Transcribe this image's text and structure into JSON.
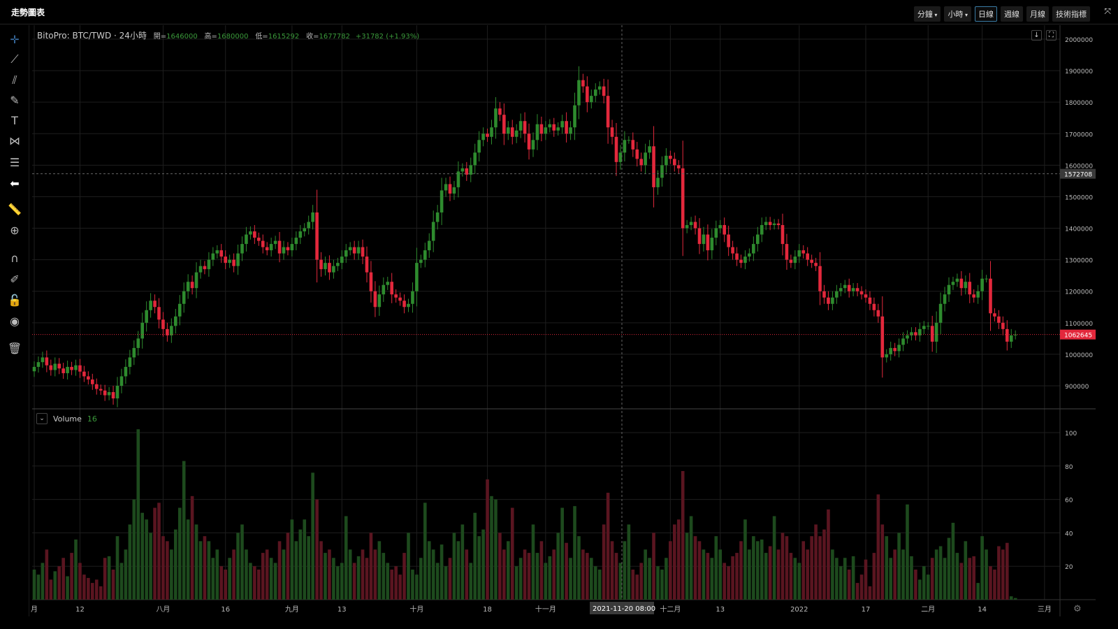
{
  "header": {
    "title": "走勢圖表",
    "timeframes": [
      {
        "label": "分鐘",
        "dropdown": true
      },
      {
        "label": "小時",
        "dropdown": true
      },
      {
        "label": "日線",
        "active": true
      },
      {
        "label": "週線"
      },
      {
        "label": "月線"
      },
      {
        "label": "技術指標"
      }
    ]
  },
  "toolbar": [
    "crosshair-icon",
    "trend-line-icon",
    "multi-line-icon",
    "brush-icon",
    "text-icon",
    "pattern-icon",
    "fib-icon",
    "arrow-left-icon",
    "ruler-icon",
    "zoom-in-icon",
    "magnet-icon",
    "lock-drawing-icon",
    "unlock-icon",
    "eye-icon",
    "trash-icon"
  ],
  "legend": {
    "symbol": "BitoPro: BTC/TWD · 24小時",
    "open_label": "開=",
    "open": "1646000",
    "high_label": "高=",
    "high": "1680000",
    "low_label": "低=",
    "low": "1615292",
    "close_label": "收=",
    "close": "1677782",
    "change": "+31782 (+1.93%)"
  },
  "volume_legend": {
    "label": "Volume",
    "value": "16"
  },
  "crosshair": {
    "time_label": "2021-11-20   08:00",
    "price_label": "1572708",
    "price": 1572708
  },
  "last_price": {
    "label": "1062645",
    "price": 1062645
  },
  "colors": {
    "up": "#2e8b2e",
    "down": "#e3283c",
    "up_vol": "#1d4a1d",
    "down_vol": "#5a1520",
    "grid": "#1e1e1e",
    "last": "#e3283c"
  },
  "chart_data": {
    "type": "candlestick",
    "title": "BitoPro: BTC/TWD",
    "price_axis": {
      "ticks": [
        900000,
        1000000,
        1100000,
        1200000,
        1300000,
        1400000,
        1500000,
        1600000,
        1700000,
        1800000,
        1900000,
        2000000
      ],
      "range": [
        800000,
        2000000
      ]
    },
    "volume_axis": {
      "ticks": [
        20,
        40,
        60,
        80,
        100
      ],
      "range": [
        0,
        110
      ]
    },
    "x_ticks": [
      {
        "label": "月",
        "day": 0
      },
      {
        "label": "12",
        "day": 11
      },
      {
        "label": "八月",
        "day": 31
      },
      {
        "label": "16",
        "day": 46
      },
      {
        "label": "九月",
        "day": 62
      },
      {
        "label": "13",
        "day": 74
      },
      {
        "label": "十月",
        "day": 92
      },
      {
        "label": "18",
        "day": 109
      },
      {
        "label": "十一月",
        "day": 123
      },
      {
        "label": "十二月",
        "day": 153
      },
      {
        "label": "13",
        "day": 165
      },
      {
        "label": "2022",
        "day": 184
      },
      {
        "label": "17",
        "day": 200
      },
      {
        "label": "二月",
        "day": 215
      },
      {
        "label": "14",
        "day": 228
      },
      {
        "label": "三月",
        "day": 243
      }
    ],
    "first_open": 946000,
    "close_thousands": [
      960,
      975,
      990,
      965,
      950,
      970,
      955,
      940,
      960,
      950,
      965,
      945,
      930,
      920,
      905,
      890,
      885,
      870,
      880,
      860,
      900,
      930,
      960,
      990,
      1020,
      1050,
      1100,
      1140,
      1170,
      1150,
      1110,
      1080,
      1060,
      1090,
      1120,
      1160,
      1200,
      1230,
      1210,
      1260,
      1280,
      1270,
      1300,
      1320,
      1330,
      1310,
      1290,
      1300,
      1280,
      1320,
      1350,
      1380,
      1390,
      1370,
      1360,
      1340,
      1330,
      1350,
      1360,
      1320,
      1340,
      1330,
      1350,
      1370,
      1390,
      1400,
      1420,
      1450,
      1300,
      1270,
      1290,
      1260,
      1280,
      1290,
      1310,
      1330,
      1340,
      1320,
      1340,
      1310,
      1260,
      1200,
      1150,
      1190,
      1220,
      1230,
      1190,
      1180,
      1170,
      1150,
      1160,
      1200,
      1290,
      1300,
      1330,
      1360,
      1420,
      1450,
      1520,
      1540,
      1510,
      1530,
      1580,
      1590,
      1570,
      1600,
      1640,
      1680,
      1700,
      1690,
      1720,
      1780,
      1760,
      1700,
      1720,
      1690,
      1710,
      1740,
      1700,
      1650,
      1680,
      1730,
      1700,
      1720,
      1730,
      1710,
      1720,
      1740,
      1700,
      1720,
      1790,
      1870,
      1850,
      1800,
      1820,
      1840,
      1850,
      1820,
      1720,
      1690,
      1610,
      1640,
      1680,
      1680,
      1650,
      1620,
      1600,
      1640,
      1660,
      1530,
      1560,
      1600,
      1630,
      1620,
      1600,
      1590,
      1400,
      1410,
      1420,
      1400,
      1350,
      1380,
      1330,
      1370,
      1400,
      1410,
      1380,
      1340,
      1320,
      1300,
      1290,
      1310,
      1320,
      1350,
      1380,
      1410,
      1420,
      1410,
      1415,
      1410,
      1350,
      1300,
      1290,
      1310,
      1330,
      1320,
      1300,
      1290,
      1280,
      1200,
      1180,
      1160,
      1180,
      1200,
      1210,
      1220,
      1200,
      1210,
      1200,
      1190,
      1180,
      1160,
      1140,
      1120,
      990,
      1000,
      1020,
      1010,
      1030,
      1050,
      1060,
      1070,
      1060,
      1080,
      1090,
      1090,
      1040,
      1100,
      1160,
      1190,
      1220,
      1230,
      1240,
      1210,
      1230,
      1190,
      1180,
      1200,
      1240,
      1240,
      1130,
      1120,
      1100,
      1080,
      1040,
      1060,
      1062.645
    ],
    "volume": [
      18,
      15,
      22,
      30,
      12,
      17,
      20,
      25,
      14,
      28,
      36,
      22,
      15,
      13,
      10,
      12,
      8,
      25,
      26,
      18,
      38,
      22,
      30,
      45,
      60,
      102,
      52,
      48,
      40,
      55,
      58,
      38,
      35,
      30,
      42,
      55,
      83,
      48,
      62,
      45,
      35,
      38,
      35,
      25,
      30,
      20,
      18,
      25,
      30,
      40,
      45,
      30,
      22,
      20,
      18,
      28,
      30,
      25,
      22,
      35,
      30,
      40,
      48,
      35,
      42,
      48,
      38,
      76,
      60,
      35,
      28,
      30,
      25,
      20,
      22,
      50,
      30,
      22,
      26,
      30,
      25,
      40,
      30,
      35,
      28,
      22,
      18,
      20,
      15,
      28,
      40,
      18,
      15,
      25,
      58,
      35,
      30,
      22,
      33,
      20,
      25,
      40,
      35,
      45,
      30,
      22,
      52,
      38,
      42,
      72,
      62,
      60,
      40,
      30,
      35,
      55,
      20,
      25,
      30,
      28,
      45,
      28,
      35,
      22,
      26,
      30,
      40,
      55,
      34,
      25,
      56,
      38,
      30,
      28,
      25,
      20,
      18,
      45,
      64,
      35,
      28,
      22,
      35,
      45,
      18,
      15,
      22,
      30,
      25,
      40,
      20,
      18,
      25,
      35,
      45,
      48,
      77,
      40,
      50,
      38,
      35,
      30,
      28,
      25,
      38,
      30,
      22,
      20,
      26,
      28,
      35,
      48,
      30,
      38,
      35,
      36,
      28,
      32,
      50,
      30,
      40,
      38,
      28,
      25,
      22,
      35,
      30,
      38,
      45,
      38,
      42,
      54,
      30,
      25,
      20,
      25,
      18,
      26,
      10,
      15,
      24,
      8,
      28,
      63,
      45,
      38,
      25,
      30,
      40,
      30,
      57,
      26,
      18,
      12,
      20,
      15,
      25,
      30,
      32,
      25,
      37,
      46,
      28,
      22,
      35,
      25,
      26,
      10,
      38,
      30,
      20,
      18,
      32,
      30,
      34,
      2,
      1
    ]
  }
}
